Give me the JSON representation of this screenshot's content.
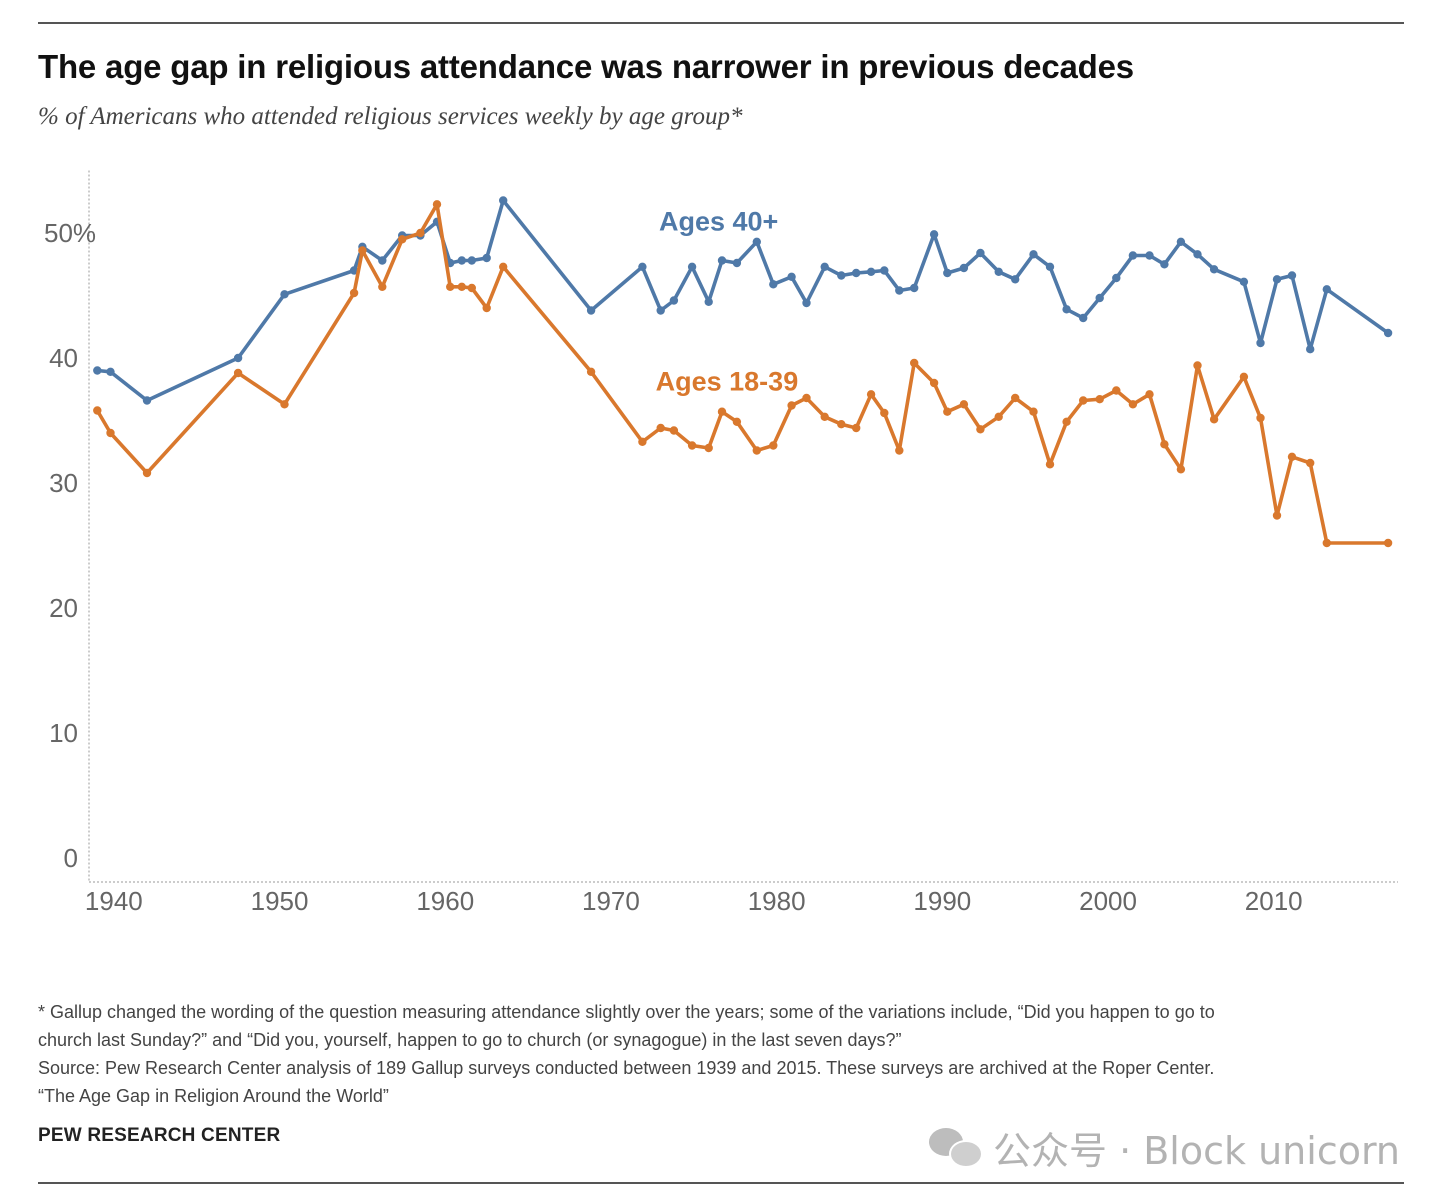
{
  "header": {
    "title": "The age gap in religious attendance was narrower in previous decades",
    "subtitle": "% of Americans who attended religious services weekly by age group*"
  },
  "footnote": {
    "line1": "* Gallup changed the wording of the question measuring attendance slightly over the years; some of the variations include, “Did you happen to go to",
    "line2": "church last Sunday?” and “Did you, yourself, happen to go to church (or synagogue) in the last seven days?”",
    "line3": "Source: Pew Research Center analysis of 189 Gallup surveys conducted between 1939 and 2015. These surveys are archived at the Roper Center.",
    "line4": "“The Age Gap in Religion Around the World”"
  },
  "brand": "PEW RESEARCH CENTER",
  "watermark": {
    "text": "公众号 · Block unicorn",
    "icon": "wechat-icon"
  },
  "colors": {
    "ages_40_plus": "#4f79a8",
    "ages_18_39": "#d9782d"
  },
  "chart_data": {
    "type": "line",
    "title": "The age gap in religious attendance was narrower in previous decades",
    "subtitle": "% of Americans who attended religious services weekly by age group*",
    "xlim": [
      1938.5,
      2017.5
    ],
    "ylim": [
      0,
      55
    ],
    "x_ticks": [
      1940,
      1950,
      1960,
      1970,
      1980,
      1990,
      2000,
      2010
    ],
    "y_ticks": [
      {
        "value": 0,
        "label": "0"
      },
      {
        "value": 10,
        "label": "10"
      },
      {
        "value": 20,
        "label": "20"
      },
      {
        "value": 30,
        "label": "30"
      },
      {
        "value": 40,
        "label": "40"
      },
      {
        "value": 50,
        "label": "50%"
      }
    ],
    "grid": false,
    "legend": "direct labels on lines",
    "series": [
      {
        "name": "Ages 40+",
        "color": "#4f79a8",
        "label_at": [
          1976.5,
          50.2
        ],
        "points": [
          [
            1939.0,
            39.0
          ],
          [
            1939.8,
            38.9
          ],
          [
            1942.0,
            36.6
          ],
          [
            1947.5,
            40.0
          ],
          [
            1950.3,
            45.1
          ],
          [
            1954.5,
            47.0
          ],
          [
            1955.0,
            48.9
          ],
          [
            1956.2,
            47.8
          ],
          [
            1957.4,
            49.8
          ],
          [
            1958.5,
            49.8
          ],
          [
            1959.5,
            50.9
          ],
          [
            1960.3,
            47.6
          ],
          [
            1961.0,
            47.8
          ],
          [
            1961.6,
            47.8
          ],
          [
            1962.5,
            48.0
          ],
          [
            1963.5,
            52.6
          ],
          [
            1968.8,
            43.8
          ],
          [
            1971.9,
            47.3
          ],
          [
            1973.0,
            43.8
          ],
          [
            1973.8,
            44.6
          ],
          [
            1974.9,
            47.3
          ],
          [
            1975.9,
            44.5
          ],
          [
            1976.7,
            47.8
          ],
          [
            1977.6,
            47.6
          ],
          [
            1978.8,
            49.3
          ],
          [
            1979.8,
            45.9
          ],
          [
            1980.9,
            46.5
          ],
          [
            1981.8,
            44.4
          ],
          [
            1982.9,
            47.3
          ],
          [
            1983.9,
            46.6
          ],
          [
            1984.8,
            46.8
          ],
          [
            1985.7,
            46.9
          ],
          [
            1986.5,
            47.0
          ],
          [
            1987.4,
            45.4
          ],
          [
            1988.3,
            45.6
          ],
          [
            1989.5,
            49.9
          ],
          [
            1990.3,
            46.8
          ],
          [
            1991.3,
            47.2
          ],
          [
            1992.3,
            48.4
          ],
          [
            1993.4,
            46.9
          ],
          [
            1994.4,
            46.3
          ],
          [
            1995.5,
            48.3
          ],
          [
            1996.5,
            47.3
          ],
          [
            1997.5,
            43.9
          ],
          [
            1998.5,
            43.2
          ],
          [
            1999.5,
            44.8
          ],
          [
            2000.5,
            46.4
          ],
          [
            2001.5,
            48.2
          ],
          [
            2002.5,
            48.2
          ],
          [
            2003.4,
            47.5
          ],
          [
            2004.4,
            49.3
          ],
          [
            2005.4,
            48.3
          ],
          [
            2006.4,
            47.1
          ],
          [
            2008.2,
            46.1
          ],
          [
            2009.2,
            41.2
          ],
          [
            2010.2,
            46.3
          ],
          [
            2011.1,
            46.6
          ],
          [
            2012.2,
            40.7
          ],
          [
            2013.2,
            45.5
          ],
          [
            2016.9,
            42.0
          ]
        ]
      },
      {
        "name": "Ages 18-39",
        "color": "#d9782d",
        "label_at": [
          1977.0,
          37.4
        ],
        "points": [
          [
            1939.0,
            35.8
          ],
          [
            1939.8,
            34.0
          ],
          [
            1942.0,
            30.8
          ],
          [
            1947.5,
            38.8
          ],
          [
            1950.3,
            36.3
          ],
          [
            1954.5,
            45.2
          ],
          [
            1955.0,
            48.6
          ],
          [
            1956.2,
            45.7
          ],
          [
            1957.4,
            49.5
          ],
          [
            1958.5,
            50.0
          ],
          [
            1959.5,
            52.3
          ],
          [
            1960.3,
            45.7
          ],
          [
            1961.0,
            45.7
          ],
          [
            1961.6,
            45.6
          ],
          [
            1962.5,
            44.0
          ],
          [
            1963.5,
            47.3
          ],
          [
            1968.8,
            38.9
          ],
          [
            1971.9,
            33.3
          ],
          [
            1973.0,
            34.4
          ],
          [
            1973.8,
            34.2
          ],
          [
            1974.9,
            33.0
          ],
          [
            1975.9,
            32.8
          ],
          [
            1976.7,
            35.7
          ],
          [
            1977.6,
            34.9
          ],
          [
            1978.8,
            32.6
          ],
          [
            1979.8,
            33.0
          ],
          [
            1980.9,
            36.2
          ],
          [
            1981.8,
            36.8
          ],
          [
            1982.9,
            35.3
          ],
          [
            1983.9,
            34.7
          ],
          [
            1984.8,
            34.4
          ],
          [
            1985.7,
            37.1
          ],
          [
            1986.5,
            35.6
          ],
          [
            1987.4,
            32.6
          ],
          [
            1988.3,
            39.6
          ],
          [
            1989.5,
            38.0
          ],
          [
            1990.3,
            35.7
          ],
          [
            1991.3,
            36.3
          ],
          [
            1992.3,
            34.3
          ],
          [
            1993.4,
            35.3
          ],
          [
            1994.4,
            36.8
          ],
          [
            1995.5,
            35.7
          ],
          [
            1996.5,
            31.5
          ],
          [
            1997.5,
            34.9
          ],
          [
            1998.5,
            36.6
          ],
          [
            1999.5,
            36.7
          ],
          [
            2000.5,
            37.4
          ],
          [
            2001.5,
            36.3
          ],
          [
            2002.5,
            37.1
          ],
          [
            2003.4,
            33.1
          ],
          [
            2004.4,
            31.1
          ],
          [
            2005.4,
            39.4
          ],
          [
            2006.4,
            35.1
          ],
          [
            2008.2,
            38.5
          ],
          [
            2009.2,
            35.2
          ],
          [
            2010.2,
            27.4
          ],
          [
            2011.1,
            32.1
          ],
          [
            2012.2,
            31.6
          ],
          [
            2013.2,
            25.2
          ],
          [
            2016.9,
            25.2
          ]
        ]
      }
    ]
  }
}
